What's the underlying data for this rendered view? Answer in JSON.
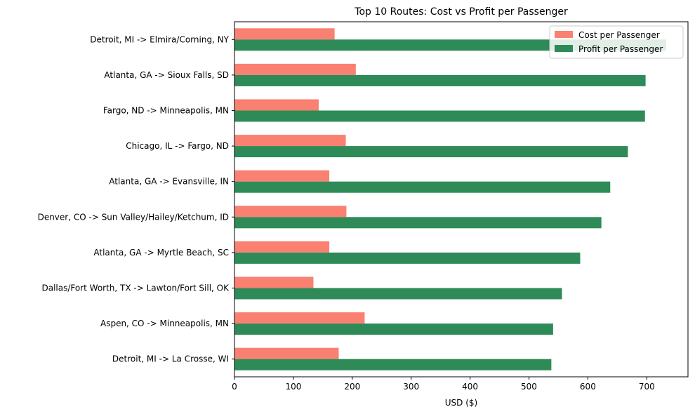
{
  "chart_data": {
    "type": "bar",
    "orientation": "horizontal",
    "title": "Top 10 Routes: Cost vs Profit per Passenger",
    "xlabel": "USD ($)",
    "ylabel": "",
    "xlim": [
      0,
      770
    ],
    "xticks": [
      0,
      100,
      200,
      300,
      400,
      500,
      600,
      700
    ],
    "grid": false,
    "legend_position": "top-right",
    "categories": [
      "Detroit, MI -> Elmira/Corning, NY",
      "Atlanta, GA -> Sioux Falls, SD",
      "Fargo, ND -> Minneapolis, MN",
      "Chicago, IL -> Fargo, ND",
      "Atlanta, GA -> Evansville, IN",
      "Denver, CO -> Sun Valley/Hailey/Ketchum, ID",
      "Atlanta, GA -> Myrtle Beach, SC",
      "Dallas/Fort Worth, TX -> Lawton/Fort Sill, OK",
      "Aspen, CO -> Minneapolis, MN",
      "Detroit, MI -> La Crosse, WI"
    ],
    "series": [
      {
        "name": "Cost per Passenger",
        "color": "#fa8072",
        "values": [
          170,
          206,
          143,
          189,
          161,
          190,
          161,
          134,
          221,
          177
        ]
      },
      {
        "name": "Profit per Passenger",
        "color": "#2e8b57",
        "values": [
          733,
          698,
          697,
          668,
          638,
          623,
          587,
          556,
          541,
          538
        ]
      }
    ]
  }
}
